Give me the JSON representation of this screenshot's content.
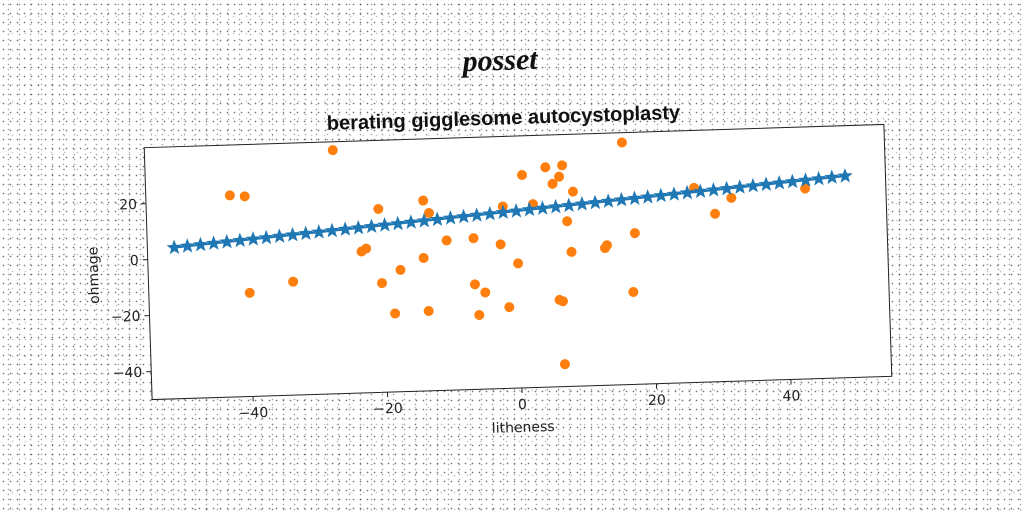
{
  "heading": "posset",
  "chart_data": {
    "type": "scatter",
    "title": "berating gigglesome autocystoplasty",
    "xlabel": "litheness",
    "ylabel": "ohmage",
    "xlim": [
      -55,
      55
    ],
    "ylim": [
      -50,
      40
    ],
    "xticks": [
      -40,
      -20,
      0,
      20,
      40
    ],
    "yticks": [
      -40,
      -20,
      0,
      20
    ],
    "grid": false,
    "legend": "none",
    "colors": {
      "line": "#1f77b4",
      "scatter": "#ff7f0e"
    },
    "series": [
      {
        "type": "line",
        "marker": "star",
        "x": [
          -51,
          49
        ],
        "y": [
          4,
          22
        ],
        "num_markers": 52
      },
      {
        "type": "scatter",
        "marker": "circle",
        "points": [
          [
            -42.5,
            22
          ],
          [
            -40.3,
            21.5
          ],
          [
            -40,
            -13
          ],
          [
            -33.5,
            -9.5
          ],
          [
            -27,
            37
          ],
          [
            -23.2,
            0.5
          ],
          [
            -22.5,
            1.5
          ],
          [
            -20.5,
            15.5
          ],
          [
            -20.3,
            -11
          ],
          [
            -18.5,
            -22
          ],
          [
            -17.5,
            -6.5
          ],
          [
            -14,
            -2.5
          ],
          [
            -13.8,
            18
          ],
          [
            -13.5,
            -21.5
          ],
          [
            -13,
            13.5
          ],
          [
            -10.5,
            3.5
          ],
          [
            -6.5,
            -12.5
          ],
          [
            -6,
            -23.5
          ],
          [
            -5,
            -15.5
          ],
          [
            -6.5,
            4
          ],
          [
            -2.5,
            1.5
          ],
          [
            -2,
            15
          ],
          [
            -1.5,
            -21
          ],
          [
            0,
            -5.5
          ],
          [
            1,
            26
          ],
          [
            2.5,
            15.5
          ],
          [
            4.5,
            28.5
          ],
          [
            5.5,
            22.5
          ],
          [
            6.5,
            25
          ],
          [
            7,
            29
          ],
          [
            6,
            -19
          ],
          [
            6.5,
            -19.5
          ],
          [
            7.5,
            9
          ],
          [
            8,
            -2
          ],
          [
            8.5,
            19.5
          ],
          [
            6.5,
            -42
          ],
          [
            13,
            -1
          ],
          [
            13.3,
            0
          ],
          [
            16,
            36.5
          ],
          [
            17,
            -17
          ],
          [
            17.5,
            4
          ],
          [
            26.5,
            19.5
          ],
          [
            29.5,
            10
          ],
          [
            32,
            15.5
          ],
          [
            43,
            18
          ]
        ]
      }
    ]
  }
}
